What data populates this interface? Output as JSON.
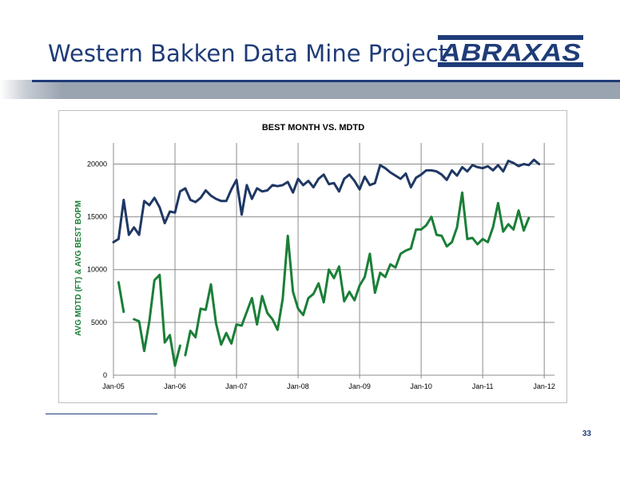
{
  "slide": {
    "title": "Western Bakken Data Mine Project",
    "logo_text": "ABRAXAS",
    "page_number": "33"
  },
  "colors": {
    "title": "#1f3c78",
    "series_mdtd": "#1f3864",
    "series_bopm": "#1a7f37",
    "band": "#9aa3b0"
  },
  "chart_data": {
    "type": "line",
    "title": "BEST MONTH VS. MDTD",
    "xlabel": "",
    "ylabel": "AVG MDTD (FT) & AVG BEST BOPM",
    "xlim": [
      "2005-01",
      "2012-03"
    ],
    "ylim": [
      0,
      22000
    ],
    "yticks": [
      0,
      5000,
      10000,
      15000,
      20000
    ],
    "xticks": [
      "Jan-05",
      "Jan-06",
      "Jan-07",
      "Jan-08",
      "Jan-09",
      "Jan-10",
      "Jan-11",
      "Jan-12"
    ],
    "grid": true,
    "legend": "none",
    "series": [
      {
        "key": "mdtd",
        "color": "#1f3864",
        "points": [
          [
            "2005-01",
            12600
          ],
          [
            "2005-02",
            12900
          ],
          [
            "2005-03",
            16600
          ],
          [
            "2005-04",
            13300
          ],
          [
            "2005-05",
            14000
          ],
          [
            "2005-06",
            13300
          ],
          [
            "2005-07",
            16500
          ],
          [
            "2005-08",
            16100
          ],
          [
            "2005-09",
            16800
          ],
          [
            "2005-10",
            15900
          ],
          [
            "2005-11",
            14400
          ],
          [
            "2005-12",
            15500
          ],
          [
            "2006-01",
            15400
          ],
          [
            "2006-02",
            17400
          ],
          [
            "2006-03",
            17700
          ],
          [
            "2006-04",
            16600
          ],
          [
            "2006-05",
            16400
          ],
          [
            "2006-06",
            16800
          ],
          [
            "2006-07",
            17500
          ],
          [
            "2006-08",
            17000
          ],
          [
            "2006-09",
            16700
          ],
          [
            "2006-10",
            16500
          ],
          [
            "2006-11",
            16500
          ],
          [
            "2006-12",
            17600
          ],
          [
            "2007-01",
            18500
          ],
          [
            "2007-02",
            15200
          ],
          [
            "2007-03",
            18000
          ],
          [
            "2007-04",
            16700
          ],
          [
            "2007-05",
            17700
          ],
          [
            "2007-06",
            17400
          ],
          [
            "2007-07",
            17500
          ],
          [
            "2007-08",
            18000
          ],
          [
            "2007-09",
            17900
          ],
          [
            "2007-10",
            18000
          ],
          [
            "2007-11",
            18300
          ],
          [
            "2007-12",
            17300
          ],
          [
            "2008-01",
            18600
          ],
          [
            "2008-02",
            18000
          ],
          [
            "2008-03",
            18400
          ],
          [
            "2008-04",
            17800
          ],
          [
            "2008-05",
            18600
          ],
          [
            "2008-06",
            19000
          ],
          [
            "2008-07",
            18100
          ],
          [
            "2008-08",
            18200
          ],
          [
            "2008-09",
            17400
          ],
          [
            "2008-10",
            18600
          ],
          [
            "2008-11",
            19000
          ],
          [
            "2008-12",
            18400
          ],
          [
            "2009-01",
            17600
          ],
          [
            "2009-02",
            18800
          ],
          [
            "2009-03",
            18000
          ],
          [
            "2009-04",
            18200
          ],
          [
            "2009-05",
            19900
          ],
          [
            "2009-06",
            19600
          ],
          [
            "2009-07",
            19200
          ],
          [
            "2009-08",
            18900
          ],
          [
            "2009-09",
            18600
          ],
          [
            "2009-10",
            19100
          ],
          [
            "2009-11",
            17800
          ],
          [
            "2009-12",
            18700
          ],
          [
            "2010-01",
            19000
          ],
          [
            "2010-02",
            19400
          ],
          [
            "2010-03",
            19400
          ],
          [
            "2010-04",
            19300
          ],
          [
            "2010-05",
            19000
          ],
          [
            "2010-06",
            18500
          ],
          [
            "2010-07",
            19400
          ],
          [
            "2010-08",
            18900
          ],
          [
            "2010-09",
            19700
          ],
          [
            "2010-10",
            19300
          ],
          [
            "2010-11",
            19900
          ],
          [
            "2010-12",
            19700
          ],
          [
            "2011-01",
            19600
          ],
          [
            "2011-02",
            19800
          ],
          [
            "2011-03",
            19400
          ],
          [
            "2011-04",
            19900
          ],
          [
            "2011-05",
            19300
          ],
          [
            "2011-06",
            20300
          ],
          [
            "2011-07",
            20100
          ],
          [
            "2011-08",
            19800
          ],
          [
            "2011-09",
            20000
          ],
          [
            "2011-10",
            19900
          ],
          [
            "2011-11",
            20400
          ],
          [
            "2011-12",
            20000
          ]
        ]
      },
      {
        "key": "bopm",
        "color": "#1a7f37",
        "points": [
          [
            "2005-02",
            8800
          ],
          [
            "2005-03",
            6000
          ],
          null,
          [
            "2005-05",
            5300
          ],
          [
            "2005-06",
            5100
          ],
          [
            "2005-07",
            2300
          ],
          [
            "2005-08",
            5100
          ],
          [
            "2005-09",
            9000
          ],
          [
            "2005-10",
            9500
          ],
          [
            "2005-11",
            3100
          ],
          [
            "2005-12",
            3800
          ],
          [
            "2006-01",
            900
          ],
          [
            "2006-02",
            2800
          ],
          null,
          [
            "2006-03",
            1900
          ],
          [
            "2006-04",
            4200
          ],
          [
            "2006-05",
            3600
          ],
          [
            "2006-06",
            6300
          ],
          [
            "2006-07",
            6200
          ],
          [
            "2006-08",
            8600
          ],
          [
            "2006-09",
            4900
          ],
          [
            "2006-10",
            2900
          ],
          [
            "2006-11",
            4000
          ],
          [
            "2006-12",
            3000
          ],
          [
            "2007-01",
            4800
          ],
          [
            "2007-02",
            4700
          ],
          [
            "2007-03",
            6000
          ],
          [
            "2007-04",
            7300
          ],
          [
            "2007-05",
            4800
          ],
          [
            "2007-06",
            7500
          ],
          [
            "2007-07",
            5900
          ],
          [
            "2007-08",
            5300
          ],
          [
            "2007-09",
            4300
          ],
          [
            "2007-10",
            7200
          ],
          [
            "2007-11",
            13200
          ],
          [
            "2007-12",
            7900
          ],
          [
            "2008-01",
            6300
          ],
          [
            "2008-02",
            5700
          ],
          [
            "2008-03",
            7300
          ],
          [
            "2008-04",
            7700
          ],
          [
            "2008-05",
            8700
          ],
          [
            "2008-06",
            6900
          ],
          [
            "2008-07",
            10000
          ],
          [
            "2008-08",
            9200
          ],
          [
            "2008-09",
            10300
          ],
          [
            "2008-10",
            7000
          ],
          [
            "2008-11",
            7900
          ],
          [
            "2008-12",
            7100
          ],
          [
            "2009-01",
            8500
          ],
          [
            "2009-02",
            9300
          ],
          [
            "2009-03",
            11500
          ],
          [
            "2009-04",
            7800
          ],
          [
            "2009-05",
            9700
          ],
          [
            "2009-06",
            9300
          ],
          [
            "2009-07",
            10500
          ],
          [
            "2009-08",
            10200
          ],
          [
            "2009-09",
            11500
          ],
          [
            "2009-10",
            11800
          ],
          [
            "2009-11",
            12000
          ],
          [
            "2009-12",
            13800
          ],
          [
            "2010-01",
            13800
          ],
          [
            "2010-02",
            14200
          ],
          [
            "2010-03",
            15000
          ],
          [
            "2010-04",
            13300
          ],
          [
            "2010-05",
            13200
          ],
          [
            "2010-06",
            12200
          ],
          [
            "2010-07",
            12600
          ],
          [
            "2010-08",
            14000
          ],
          [
            "2010-09",
            17300
          ],
          [
            "2010-10",
            12900
          ],
          [
            "2010-11",
            13000
          ],
          [
            "2010-12",
            12400
          ],
          [
            "2011-01",
            12900
          ],
          [
            "2011-02",
            12600
          ],
          [
            "2011-03",
            14000
          ],
          [
            "2011-04",
            16300
          ],
          [
            "2011-05",
            13600
          ],
          [
            "2011-06",
            14300
          ],
          [
            "2011-07",
            13800
          ],
          [
            "2011-08",
            15600
          ],
          [
            "2011-09",
            13700
          ],
          [
            "2011-10",
            14900
          ]
        ]
      }
    ]
  }
}
